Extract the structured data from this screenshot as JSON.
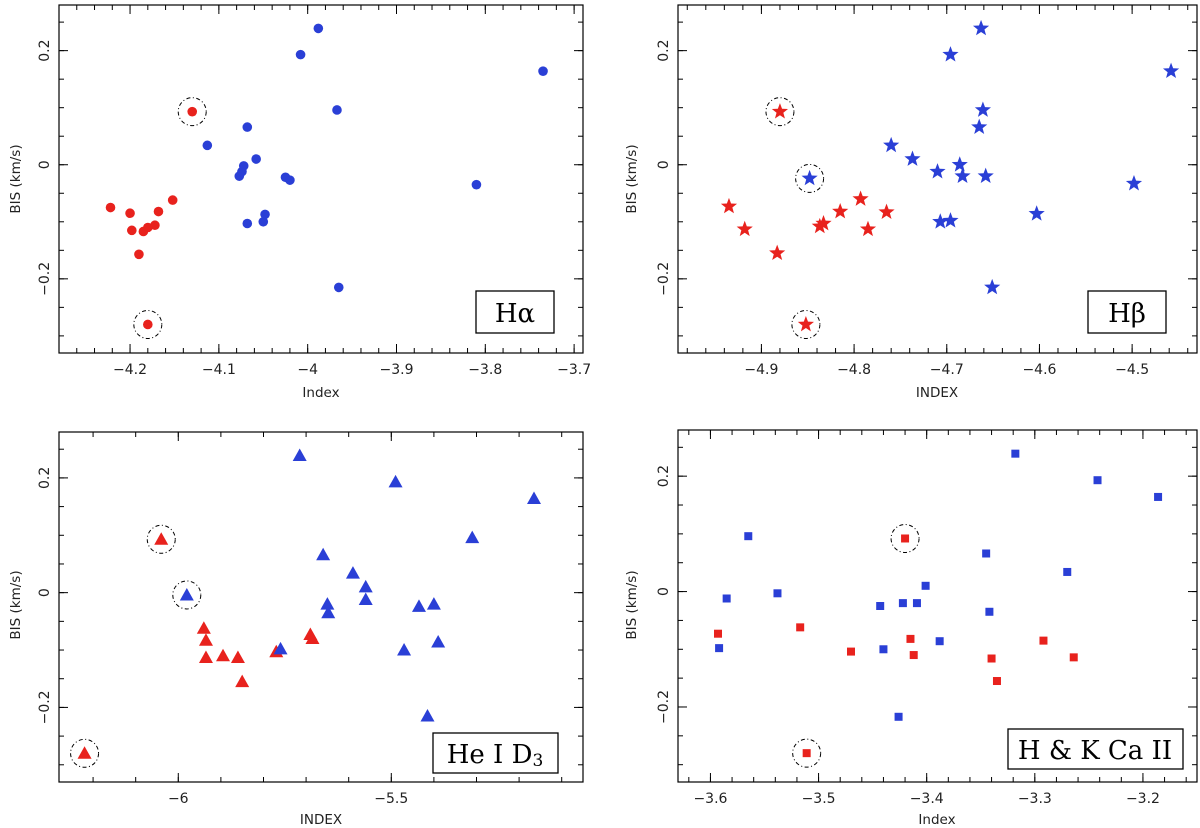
{
  "colors": {
    "red": "#e8221d",
    "blue": "#2a3fd6"
  },
  "chart_data": [
    {
      "type": "scatter",
      "panel_label": "Hα",
      "marker": "circle",
      "xlabel": "Index",
      "ylabel": "BIS (km/s)",
      "xlim": [
        -4.28,
        -3.69
      ],
      "ylim": [
        -0.33,
        0.28
      ],
      "xticks": [
        -4.2,
        -4.1,
        -4.0,
        -3.9,
        -3.8,
        -3.7
      ],
      "xtick_labels": [
        "−4.2",
        "−4.1",
        "−4",
        "−3.9",
        "−3.8",
        "−3.7"
      ],
      "yticks": [
        -0.2,
        0,
        0.2
      ],
      "ytick_labels": [
        "−0.2",
        "0",
        "0.2"
      ],
      "series": [
        {
          "color": "red",
          "points": [
            [
              -4.222,
              -0.075
            ],
            [
              -4.2,
              -0.085
            ],
            [
              -4.198,
              -0.115
            ],
            [
              -4.19,
              -0.157
            ],
            [
              -4.185,
              -0.117
            ],
            [
              -4.18,
              -0.11
            ],
            [
              -4.172,
              -0.106
            ],
            [
              -4.168,
              -0.082
            ],
            [
              -4.152,
              -0.062
            ],
            [
              -4.13,
              0.093
            ],
            [
              -4.18,
              -0.28
            ]
          ]
        },
        {
          "color": "blue",
          "points": [
            [
              -4.113,
              0.034
            ],
            [
              -4.077,
              -0.02
            ],
            [
              -4.074,
              -0.012
            ],
            [
              -4.072,
              -0.002
            ],
            [
              -4.068,
              0.066
            ],
            [
              -4.068,
              -0.103
            ],
            [
              -4.058,
              0.01
            ],
            [
              -4.05,
              -0.1
            ],
            [
              -4.048,
              -0.087
            ],
            [
              -4.025,
              -0.022
            ],
            [
              -4.02,
              -0.027
            ],
            [
              -4.008,
              0.193
            ],
            [
              -3.988,
              0.239
            ],
            [
              -3.967,
              0.096
            ],
            [
              -3.965,
              -0.215
            ],
            [
              -3.81,
              -0.035
            ],
            [
              -3.735,
              0.164
            ]
          ]
        }
      ],
      "circled": [
        [
          -4.13,
          0.093
        ],
        [
          -4.18,
          -0.28
        ]
      ]
    },
    {
      "type": "scatter",
      "panel_label": "Hβ",
      "marker": "star",
      "xlabel": "INDEX",
      "ylabel": "BIS (km/s)",
      "xlim": [
        -4.99,
        -4.43
      ],
      "ylim": [
        -0.33,
        0.28
      ],
      "xticks": [
        -4.9,
        -4.8,
        -4.7,
        -4.6,
        -4.5
      ],
      "xtick_labels": [
        "−4.9",
        "−4.8",
        "−4.7",
        "−4.6",
        "−4.5"
      ],
      "yticks": [
        -0.2,
        0,
        0.2
      ],
      "ytick_labels": [
        "−0.2",
        "0",
        "0.2"
      ],
      "series": [
        {
          "color": "red",
          "points": [
            [
              -4.935,
              -0.073
            ],
            [
              -4.918,
              -0.113
            ],
            [
              -4.883,
              -0.155
            ],
            [
              -4.88,
              0.093
            ],
            [
              -4.852,
              -0.28
            ],
            [
              -4.837,
              -0.108
            ],
            [
              -4.833,
              -0.103
            ],
            [
              -4.815,
              -0.082
            ],
            [
              -4.793,
              -0.06
            ],
            [
              -4.785,
              -0.113
            ],
            [
              -4.765,
              -0.083
            ]
          ]
        },
        {
          "color": "blue",
          "points": [
            [
              -4.848,
              -0.024
            ],
            [
              -4.76,
              0.034
            ],
            [
              -4.737,
              0.01
            ],
            [
              -4.71,
              -0.012
            ],
            [
              -4.707,
              -0.1
            ],
            [
              -4.696,
              0.193
            ],
            [
              -4.696,
              -0.098
            ],
            [
              -4.686,
              0.0
            ],
            [
              -4.683,
              -0.02
            ],
            [
              -4.665,
              0.066
            ],
            [
              -4.663,
              0.239
            ],
            [
              -4.661,
              0.096
            ],
            [
              -4.658,
              -0.02
            ],
            [
              -4.651,
              -0.215
            ],
            [
              -4.603,
              -0.086
            ],
            [
              -4.498,
              -0.033
            ],
            [
              -4.458,
              0.164
            ]
          ]
        }
      ],
      "circled": [
        [
          -4.88,
          0.093
        ],
        [
          -4.852,
          -0.28
        ],
        [
          -4.848,
          -0.024
        ]
      ]
    },
    {
      "type": "scatter",
      "panel_label": "He I D3",
      "panel_label_main": "He I D",
      "panel_label_sub": "3",
      "marker": "triangle",
      "xlabel": "INDEX",
      "ylabel": "BIS (km/s)",
      "xlim": [
        -6.28,
        -5.05
      ],
      "ylim": [
        -0.33,
        0.28
      ],
      "xticks": [
        -6.0,
        -5.5
      ],
      "xtick_labels": [
        "−6",
        "−5.5"
      ],
      "yticks": [
        -0.2,
        0,
        0.2
      ],
      "ytick_labels": [
        "−0.2",
        "0",
        "0.2"
      ],
      "series": [
        {
          "color": "red",
          "points": [
            [
              -6.22,
              -0.28
            ],
            [
              -6.04,
              0.093
            ],
            [
              -5.94,
              -0.062
            ],
            [
              -5.935,
              -0.083
            ],
            [
              -5.935,
              -0.113
            ],
            [
              -5.895,
              -0.11
            ],
            [
              -5.86,
              -0.113
            ],
            [
              -5.85,
              -0.155
            ],
            [
              -5.77,
              -0.103
            ],
            [
              -5.69,
              -0.073
            ],
            [
              -5.685,
              -0.08
            ]
          ]
        },
        {
          "color": "blue",
          "points": [
            [
              -5.98,
              -0.004
            ],
            [
              -5.76,
              -0.098
            ],
            [
              -5.715,
              0.239
            ],
            [
              -5.66,
              0.066
            ],
            [
              -5.65,
              -0.02
            ],
            [
              -5.648,
              -0.035
            ],
            [
              -5.59,
              0.034
            ],
            [
              -5.56,
              0.01
            ],
            [
              -5.56,
              -0.012
            ],
            [
              -5.49,
              0.193
            ],
            [
              -5.47,
              -0.1
            ],
            [
              -5.435,
              -0.024
            ],
            [
              -5.415,
              -0.215
            ],
            [
              -5.4,
              -0.02
            ],
            [
              -5.39,
              -0.086
            ],
            [
              -5.31,
              0.096
            ],
            [
              -5.165,
              0.164
            ]
          ]
        }
      ],
      "circled": [
        [
          -6.22,
          -0.28
        ],
        [
          -6.04,
          0.093
        ],
        [
          -5.98,
          -0.004
        ]
      ]
    },
    {
      "type": "scatter",
      "panel_label": "H & K Ca II",
      "marker": "square",
      "xlabel": "Index",
      "ylabel": "BIS (km/s)",
      "xlim": [
        -3.63,
        -3.15
      ],
      "ylim": [
        -0.33,
        0.28
      ],
      "xticks": [
        -3.6,
        -3.5,
        -3.4,
        -3.3,
        -3.2
      ],
      "xtick_labels": [
        "−3.6",
        "−3.5",
        "−3.4",
        "−3.3",
        "−3.2"
      ],
      "yticks": [
        -0.2,
        0,
        0.2
      ],
      "ytick_labels": [
        "−0.2",
        "0",
        "0.2"
      ],
      "series": [
        {
          "color": "red",
          "points": [
            [
              -3.593,
              -0.073
            ],
            [
              -3.517,
              -0.062
            ],
            [
              -3.511,
              -0.28
            ],
            [
              -3.47,
              -0.104
            ],
            [
              -3.42,
              0.092
            ],
            [
              -3.415,
              -0.082
            ],
            [
              -3.412,
              -0.11
            ],
            [
              -3.34,
              -0.116
            ],
            [
              -3.335,
              -0.155
            ],
            [
              -3.292,
              -0.085
            ],
            [
              -3.264,
              -0.114
            ]
          ]
        },
        {
          "color": "blue",
          "points": [
            [
              -3.592,
              -0.098
            ],
            [
              -3.585,
              -0.012
            ],
            [
              -3.565,
              0.096
            ],
            [
              -3.538,
              -0.003
            ],
            [
              -3.443,
              -0.025
            ],
            [
              -3.44,
              -0.1
            ],
            [
              -3.426,
              -0.217
            ],
            [
              -3.422,
              -0.02
            ],
            [
              -3.409,
              -0.02
            ],
            [
              -3.401,
              0.01
            ],
            [
              -3.388,
              -0.086
            ],
            [
              -3.345,
              0.066
            ],
            [
              -3.342,
              -0.035
            ],
            [
              -3.318,
              0.239
            ],
            [
              -3.27,
              0.034
            ],
            [
              -3.242,
              0.193
            ],
            [
              -3.186,
              0.164
            ]
          ]
        }
      ],
      "circled": [
        [
          -3.42,
          0.092
        ],
        [
          -3.511,
          -0.28
        ]
      ]
    }
  ]
}
